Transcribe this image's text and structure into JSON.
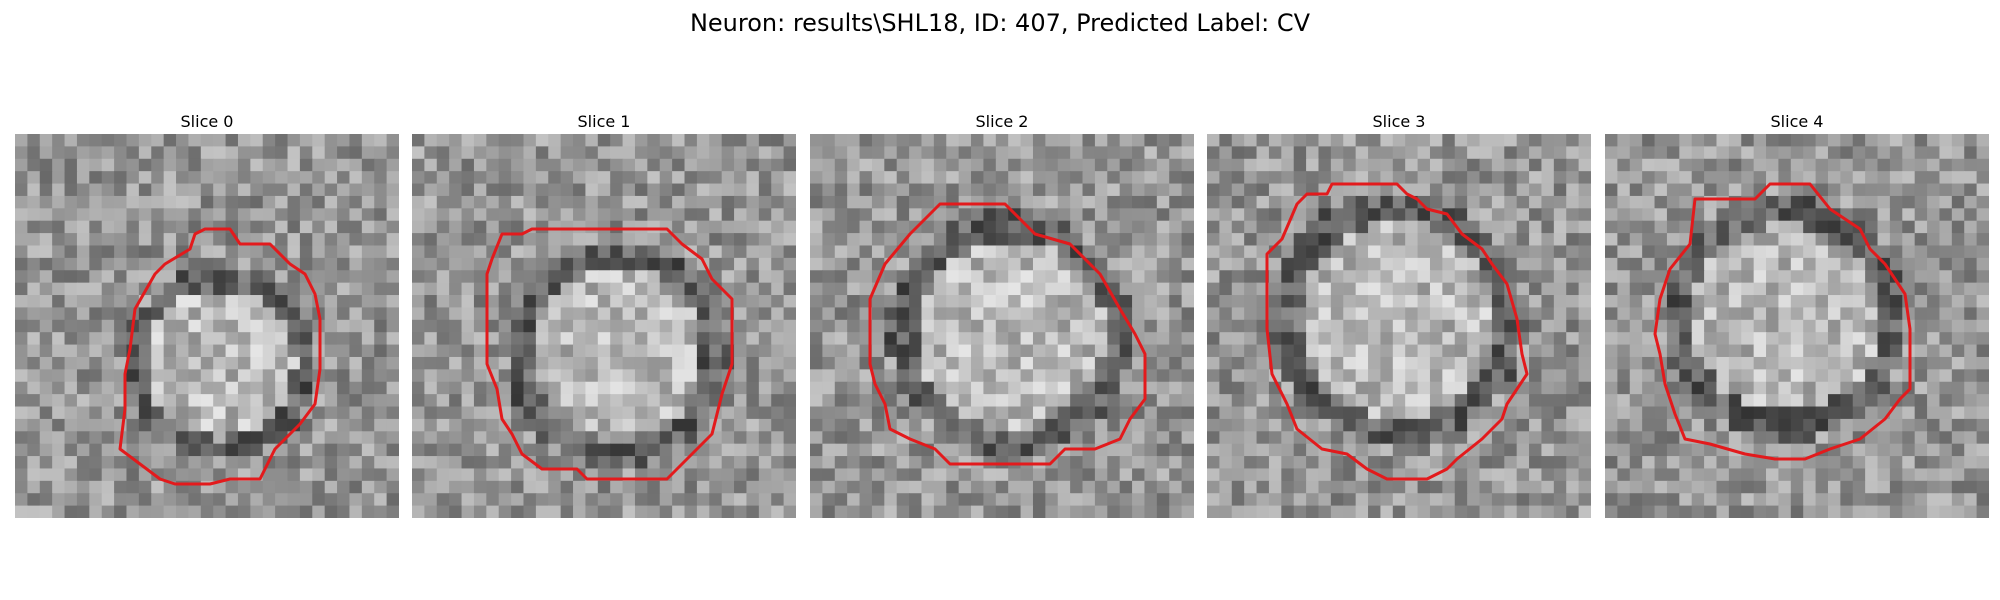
{
  "figure": {
    "title": "Neuron: results\\SHL18, ID: 407, Predicted Label: CV"
  },
  "slices": [
    {
      "label": "Slice 0",
      "contour_color": "#e31a1c",
      "tile_grid": 31
    },
    {
      "label": "Slice 1",
      "contour_color": "#e31a1c",
      "tile_grid": 31
    },
    {
      "label": "Slice 2",
      "contour_color": "#e31a1c",
      "tile_grid": 31
    },
    {
      "label": "Slice 3",
      "contour_color": "#e31a1c",
      "tile_grid": 31
    },
    {
      "label": "Slice 4",
      "contour_color": "#e31a1c",
      "tile_grid": 31
    }
  ]
}
